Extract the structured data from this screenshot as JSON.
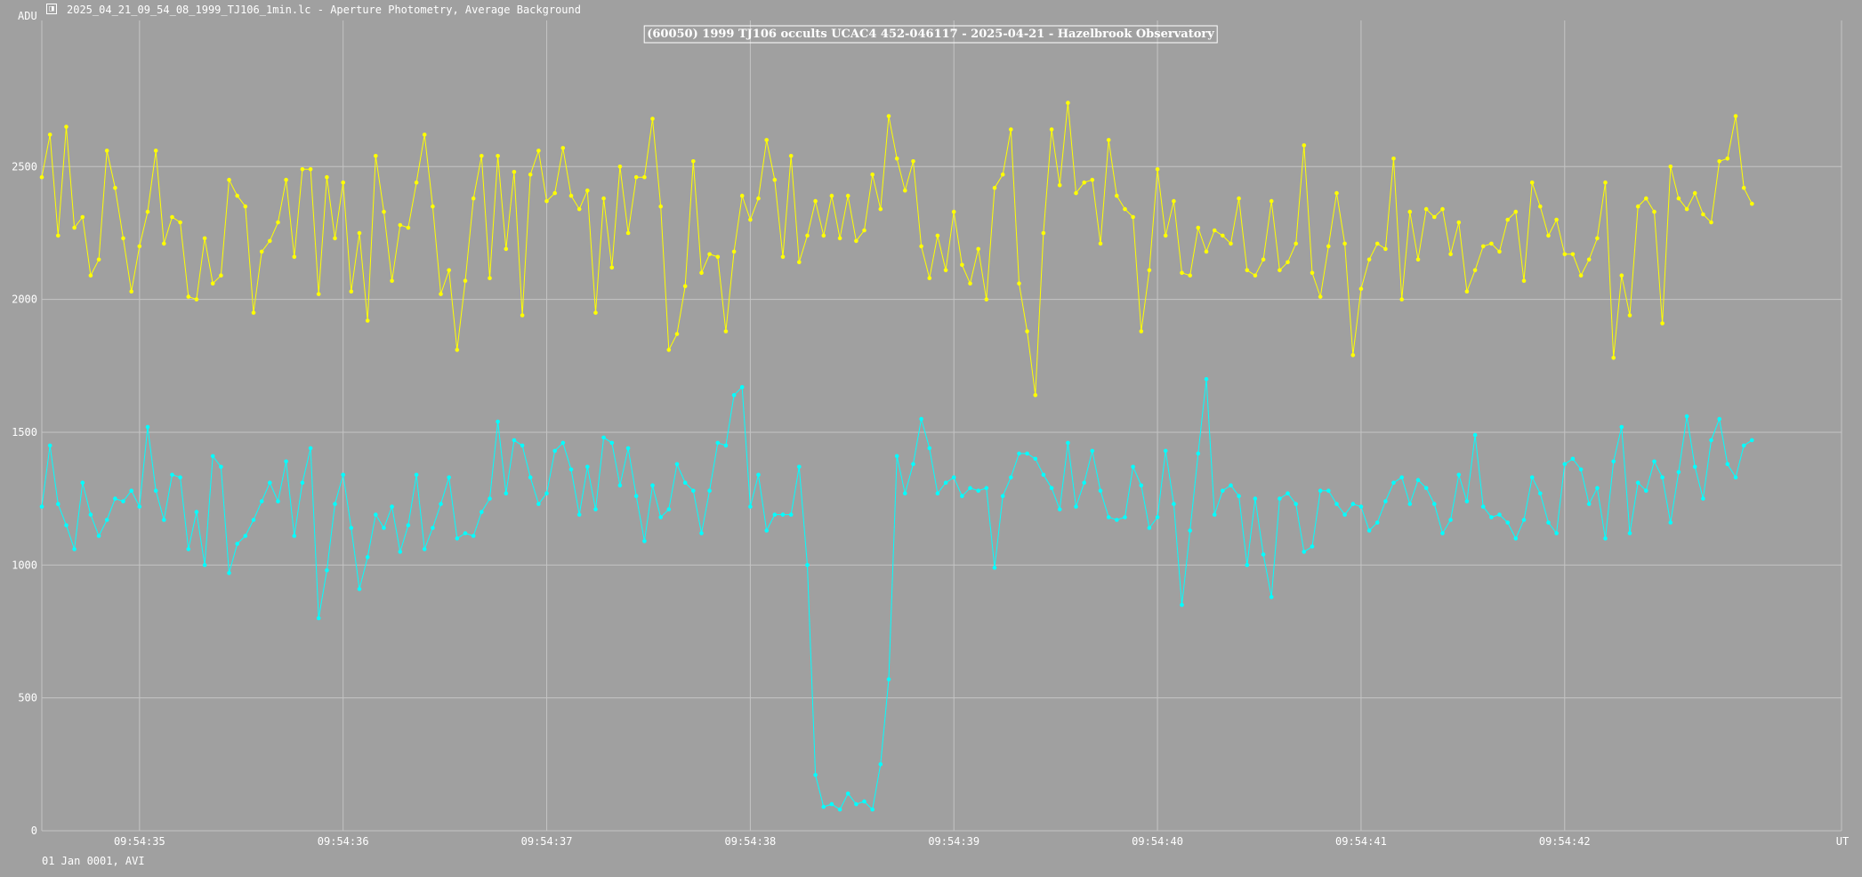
{
  "window": {
    "title": "2025_04_21_09_54_08_1999_TJ106_1min.lc - Aperture Photometry, Average Background",
    "icon": "lightcurve-app-icon"
  },
  "footer": {
    "text": "01 Jan 0001, AVI"
  },
  "colors": {
    "background": "#a0a0a0",
    "grid": "#c4c4c4",
    "target": "#00ffff",
    "comparison": "#ffff00"
  },
  "chart_data": {
    "type": "line",
    "title": "(60050) 1999 TJ106 occults UCAC4 452-046117 - 2025-04-21 - Hazelbrook Observatory",
    "ylabel": "ADU",
    "xlabel": "UT",
    "ylim": [
      0,
      3050
    ],
    "xlim": [
      34.52,
      43.36
    ],
    "y_ticks": [
      0,
      500,
      1000,
      1500,
      2000,
      2500
    ],
    "x_ticks": [
      {
        "value": 35,
        "label": "09:54:35"
      },
      {
        "value": 36,
        "label": "09:54:36"
      },
      {
        "value": 37,
        "label": "09:54:37"
      },
      {
        "value": 38,
        "label": "09:54:38"
      },
      {
        "value": 39,
        "label": "09:54:39"
      },
      {
        "value": 40,
        "label": "09:54:40"
      },
      {
        "value": 41,
        "label": "09:54:41"
      },
      {
        "value": 42,
        "label": "09:54:42"
      }
    ],
    "grid": true,
    "x_start": 34.52,
    "x_step": 0.04,
    "series": [
      {
        "color": "#ffff00",
        "values": [
          2460,
          2620,
          2240,
          2650,
          2270,
          2310,
          2090,
          2150,
          2560,
          2420,
          2230,
          2030,
          2200,
          2330,
          2560,
          2210,
          2310,
          2290,
          2010,
          2000,
          2230,
          2060,
          2090,
          2450,
          2390,
          2350,
          1950,
          2180,
          2220,
          2290,
          2450,
          2160,
          2490,
          2490,
          2020,
          2460,
          2230,
          2440,
          2030,
          2250,
          1920,
          2540,
          2330,
          2070,
          2280,
          2270,
          2440,
          2620,
          2350,
          2020,
          2110,
          1810,
          2070,
          2380,
          2540,
          2080,
          2540,
          2190,
          2480,
          1940,
          2470,
          2560,
          2370,
          2400,
          2570,
          2390,
          2340,
          2410,
          1950,
          2380,
          2120,
          2500,
          2250,
          2460,
          2460,
          2680,
          2350,
          1810,
          1870,
          2050,
          2520,
          2100,
          2170,
          2160,
          1880,
          2180,
          2390,
          2300,
          2380,
          2600,
          2450,
          2160,
          2540,
          2140,
          2240,
          2370,
          2240,
          2390,
          2230,
          2390,
          2220,
          2260,
          2470,
          2340,
          2690,
          2530,
          2410,
          2520,
          2200,
          2080,
          2240,
          2110,
          2330,
          2130,
          2060,
          2190,
          2000,
          2420,
          2470,
          2640,
          2060,
          1880,
          1640,
          2250,
          2640,
          2430,
          2740,
          2400,
          2440,
          2450,
          2210,
          2600,
          2390,
          2340,
          2310,
          1880,
          2110,
          2490,
          2240,
          2370,
          2100,
          2090,
          2270,
          2180,
          2260,
          2240,
          2210,
          2380,
          2110,
          2090,
          2150,
          2370,
          2110,
          2140,
          2210,
          2580,
          2100,
          2010,
          2200,
          2400,
          2210,
          1790,
          2040,
          2150,
          2210,
          2190,
          2530,
          2000,
          2330,
          2150,
          2340,
          2310,
          2340,
          2170,
          2290,
          2030,
          2110,
          2200,
          2210,
          2180,
          2300,
          2330,
          2070,
          2440,
          2350,
          2240,
          2300,
          2170,
          2170,
          2090,
          2150,
          2230,
          2440,
          1780,
          2090,
          1940,
          2350,
          2380,
          2330,
          1910,
          2500,
          2380,
          2340,
          2400,
          2320,
          2290,
          2520,
          2530,
          2690,
          2420,
          2360
        ]
      },
      {
        "color": "#00ffff",
        "values": [
          1220,
          1450,
          1230,
          1150,
          1060,
          1310,
          1190,
          1110,
          1170,
          1250,
          1240,
          1280,
          1220,
          1520,
          1280,
          1170,
          1340,
          1330,
          1060,
          1200,
          1000,
          1410,
          1370,
          970,
          1080,
          1110,
          1170,
          1240,
          1310,
          1240,
          1390,
          1110,
          1310,
          1440,
          800,
          980,
          1230,
          1340,
          1140,
          910,
          1030,
          1190,
          1140,
          1220,
          1050,
          1150,
          1340,
          1060,
          1140,
          1230,
          1330,
          1100,
          1120,
          1110,
          1200,
          1250,
          1540,
          1270,
          1470,
          1450,
          1330,
          1230,
          1270,
          1430,
          1460,
          1360,
          1190,
          1370,
          1210,
          1480,
          1460,
          1300,
          1440,
          1260,
          1090,
          1300,
          1180,
          1210,
          1380,
          1310,
          1280,
          1120,
          1280,
          1460,
          1450,
          1640,
          1670,
          1220,
          1340,
          1130,
          1190,
          1190,
          1190,
          1370,
          1000,
          210,
          90,
          100,
          80,
          140,
          100,
          110,
          80,
          250,
          570,
          1410,
          1270,
          1380,
          1550,
          1440,
          1270,
          1310,
          1330,
          1260,
          1290,
          1280,
          1290,
          990,
          1260,
          1330,
          1420,
          1420,
          1400,
          1340,
          1290,
          1210,
          1460,
          1220,
          1310,
          1430,
          1280,
          1180,
          1170,
          1180,
          1370,
          1300,
          1140,
          1180,
          1430,
          1230,
          850,
          1130,
          1420,
          1700,
          1190,
          1280,
          1300,
          1260,
          1000,
          1250,
          1040,
          880,
          1250,
          1270,
          1230,
          1050,
          1070,
          1280,
          1280,
          1230,
          1190,
          1230,
          1220,
          1130,
          1160,
          1240,
          1310,
          1330,
          1230,
          1320,
          1290,
          1230,
          1120,
          1170,
          1340,
          1240,
          1490,
          1220,
          1180,
          1190,
          1160,
          1100,
          1170,
          1330,
          1270,
          1160,
          1120,
          1380,
          1400,
          1360,
          1230,
          1290,
          1100,
          1390,
          1520,
          1120,
          1310,
          1280,
          1390,
          1330,
          1160,
          1350,
          1560,
          1370,
          1250,
          1470,
          1550,
          1380,
          1330,
          1450,
          1470
        ]
      }
    ]
  }
}
